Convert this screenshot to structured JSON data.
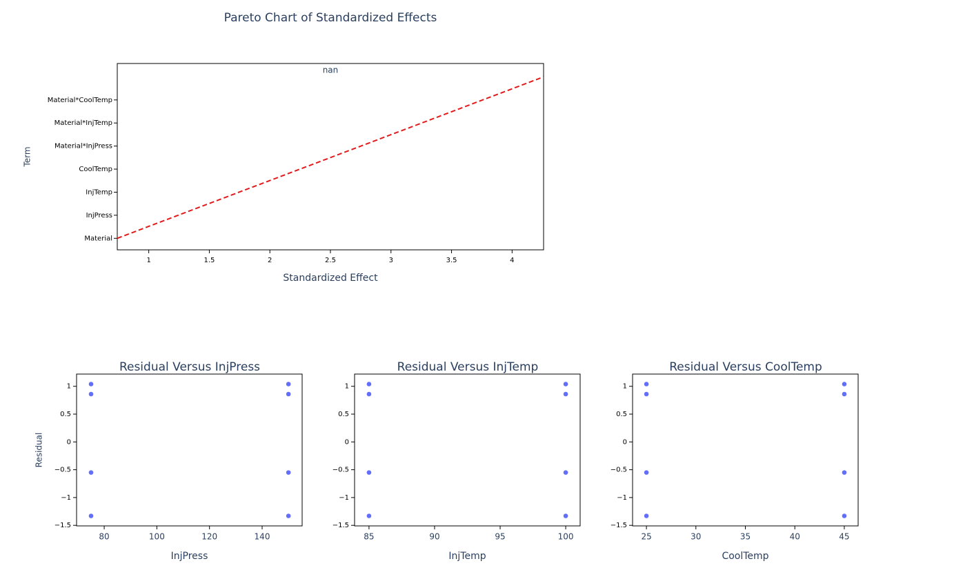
{
  "chart_data": [
    {
      "type": "line",
      "title": "Pareto Chart of Standardized Effects",
      "annotation": "nan",
      "x_label": "Standardized Effect",
      "y_label": "Term",
      "categories": [
        "Material",
        "InjPress",
        "InjTemp",
        "CoolTemp",
        "Material*InjPress",
        "Material*InjTemp",
        "Material*CoolTemp"
      ],
      "ylim": [
        -0.5,
        7.58
      ],
      "xlim": [
        0.74,
        4.26
      ],
      "xticks": [
        1,
        1.5,
        2,
        2.5,
        3,
        3.5,
        4
      ],
      "line": {
        "x": [
          0.74,
          4.26
        ],
        "y": [
          0,
          7
        ],
        "color": "#e31a1c",
        "dash": true
      }
    },
    {
      "type": "scatter",
      "title": "Residual Versus InjPress",
      "x_label": "InjPress",
      "y_label": "Residual",
      "color": "#636efa",
      "x": [
        75,
        75,
        75,
        75,
        150,
        150,
        150,
        150
      ],
      "y": [
        1.04,
        0.86,
        -0.55,
        -1.33,
        1.04,
        0.86,
        -0.55,
        -1.33
      ],
      "xlim": [
        69.5,
        155.2
      ],
      "xticks": [
        80,
        100,
        120,
        140
      ],
      "ylim": [
        -1.51,
        1.22
      ],
      "yticks": [
        {
          "value": -1.5,
          "label": "−1.5"
        },
        {
          "value": -1,
          "label": "−1"
        },
        {
          "value": -0.5,
          "label": "−0.5"
        },
        0,
        0.5,
        1
      ]
    },
    {
      "type": "scatter",
      "title": "Residual Versus InjTemp",
      "x_label": "InjTemp",
      "color": "#636efa",
      "x": [
        85,
        85,
        85,
        85,
        100,
        100,
        100,
        100
      ],
      "y": [
        1.04,
        0.86,
        -0.55,
        -1.33,
        1.04,
        0.86,
        -0.55,
        -1.33
      ],
      "xlim": [
        83.9,
        101.1
      ],
      "xticks": [
        85,
        90,
        95,
        100
      ],
      "ylim": [
        -1.51,
        1.22
      ],
      "yticks": [
        {
          "value": -1.5,
          "label": "−1.5"
        },
        {
          "value": -1,
          "label": "−1"
        },
        {
          "value": -0.5,
          "label": "−0.5"
        },
        0,
        0.5,
        1
      ]
    },
    {
      "type": "scatter",
      "title": "Residual Versus CoolTemp",
      "x_label": "CoolTemp",
      "color": "#636efa",
      "x": [
        25,
        25,
        25,
        25,
        45,
        45,
        45,
        45
      ],
      "y": [
        1.04,
        0.86,
        -0.55,
        -1.33,
        1.04,
        0.86,
        -0.55,
        -1.33
      ],
      "xlim": [
        23.6,
        46.4
      ],
      "xticks": [
        25,
        30,
        35,
        40,
        45
      ],
      "ylim": [
        -1.51,
        1.22
      ],
      "yticks": [
        {
          "value": -1.5,
          "label": "−1.5"
        },
        {
          "value": -1,
          "label": "−1"
        },
        {
          "value": -0.5,
          "label": "−0.5"
        },
        0,
        0.5,
        1
      ]
    }
  ]
}
